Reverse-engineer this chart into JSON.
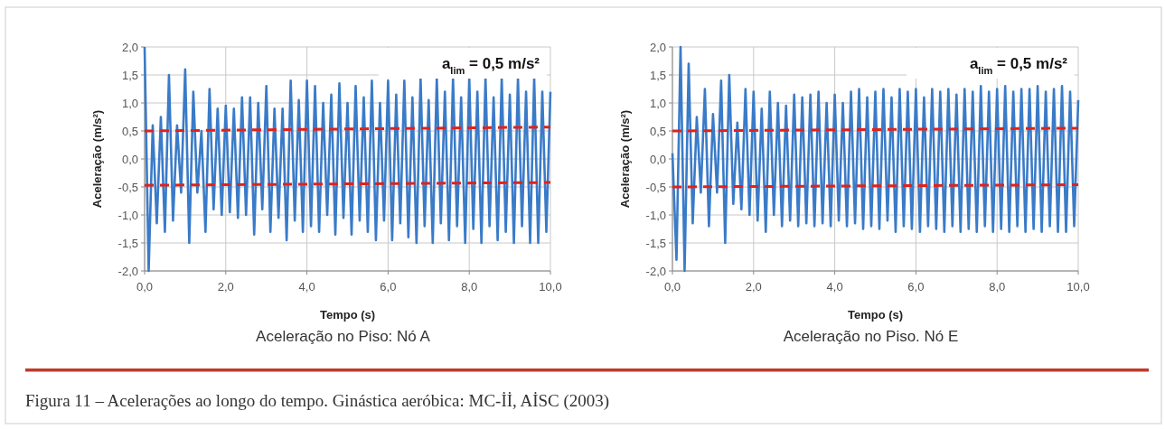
{
  "chart_data": [
    {
      "type": "line",
      "title": "Aceleração no Piso: Nó A",
      "xlabel": "Tempo (s)",
      "ylabel": "Aceleração (m/s²)",
      "annotations": [
        "a$_{lim}$ = 0,5 m/s²"
      ],
      "xlim": [
        0,
        10
      ],
      "ylim": [
        -2,
        2
      ],
      "xticks": [
        {
          "value": 0,
          "label": "0,0"
        },
        {
          "value": 2,
          "label": "2,0"
        },
        {
          "value": 4,
          "label": "4,0"
        },
        {
          "value": 6,
          "label": "6,0"
        },
        {
          "value": 8,
          "label": "8,0"
        },
        {
          "value": 10,
          "label": "10,0"
        }
      ],
      "yticks": [
        {
          "value": -2,
          "label": "-2,0"
        },
        {
          "value": -1.5,
          "label": "-1,5"
        },
        {
          "value": -1,
          "label": "-1,0"
        },
        {
          "value": -0.5,
          "label": "-0,5"
        },
        {
          "value": 0,
          "label": "0,0"
        },
        {
          "value": 0.5,
          "label": "0,5"
        },
        {
          "value": 1,
          "label": "1,0"
        },
        {
          "value": 1.5,
          "label": "1,5"
        },
        {
          "value": 2,
          "label": "2,0"
        }
      ],
      "grid": true,
      "series": [
        {
          "color": "#3a7bc8",
          "line_style": "solid",
          "x": [
            0,
            0.1,
            0.2,
            0.3,
            0.4,
            0.5,
            0.6,
            0.7,
            0.8,
            0.9,
            1,
            1.1,
            1.2,
            1.3,
            1.4,
            1.5,
            1.6,
            1.7,
            1.8,
            1.9,
            2,
            2.1,
            2.2,
            2.3,
            2.4,
            2.5,
            2.6,
            2.7,
            2.8,
            2.9,
            3,
            3.1,
            3.2,
            3.3,
            3.4,
            3.5,
            3.6,
            3.7,
            3.8,
            3.9,
            4,
            4.1,
            4.2,
            4.3,
            4.4,
            4.5,
            4.6,
            4.7,
            4.8,
            4.9,
            5,
            5.1,
            5.2,
            5.3,
            5.4,
            5.5,
            5.6,
            5.7,
            5.8,
            5.9,
            6,
            6.1,
            6.2,
            6.3,
            6.4,
            6.5,
            6.6,
            6.7,
            6.8,
            6.9,
            7,
            7.1,
            7.2,
            7.3,
            7.4,
            7.5,
            7.6,
            7.7,
            7.8,
            7.9,
            8,
            8.1,
            8.2,
            8.3,
            8.4,
            8.5,
            8.6,
            8.7,
            8.8,
            8.9,
            9,
            9.1,
            9.2,
            9.3,
            9.4,
            9.5,
            9.6,
            9.7,
            9.8,
            9.9,
            10
          ],
          "values": [
            2.0,
            -2.0,
            0.6,
            -1.15,
            0.75,
            -1.3,
            1.5,
            -1.1,
            0.6,
            -0.6,
            1.6,
            -1.5,
            1.2,
            -0.6,
            0.5,
            -1.3,
            1.25,
            -0.9,
            0.9,
            -1.0,
            0.95,
            -0.95,
            0.9,
            -1.05,
            1.1,
            -1.0,
            1.1,
            -1.35,
            1.0,
            -0.9,
            1.3,
            -1.3,
            0.9,
            -1.05,
            0.9,
            -1.45,
            1.4,
            -1.1,
            1.05,
            -1.3,
            1.4,
            -1.2,
            1.3,
            -1.3,
            1.0,
            -1.0,
            1.15,
            -1.35,
            1.35,
            -1.05,
            1.0,
            -1.35,
            1.3,
            -1.1,
            1.1,
            -1.3,
            1.4,
            -1.45,
            1.0,
            -1.1,
            1.4,
            -1.45,
            1.15,
            -1.15,
            1.4,
            -1.4,
            1.1,
            -1.5,
            1.45,
            -1.2,
            1.05,
            -1.5,
            1.45,
            -1.15,
            1.2,
            -1.45,
            1.45,
            -1.2,
            1.1,
            -1.5,
            1.45,
            -1.25,
            1.2,
            -1.5,
            1.45,
            -1.2,
            1.1,
            -1.45,
            1.45,
            -1.3,
            1.15,
            -1.5,
            1.45,
            -1.2,
            1.2,
            -1.5,
            1.45,
            -1.5,
            1.2,
            -1.3,
            1.2
          ]
        },
        {
          "color": "#e0221b",
          "line_style": "dashed",
          "x": [
            0,
            10
          ],
          "values": [
            0.5,
            0.57
          ]
        },
        {
          "color": "#e0221b",
          "line_style": "dashed",
          "x": [
            0,
            10
          ],
          "values": [
            -0.47,
            -0.42
          ]
        }
      ]
    },
    {
      "type": "line",
      "title": "Aceleração no Piso. Nó E",
      "xlabel": "Tempo (s)",
      "ylabel": "Aceleração (m/s²)",
      "annotations": [
        "a$_{lim}$ = 0,5 m/s²",
        "Figura 11 – Acelerações ao longo do tempo. Ginástica aeróbica: MC-İİ, AİSC (2003)"
      ],
      "xlim": [
        0,
        10
      ],
      "ylim": [
        -2,
        2
      ],
      "xticks": [
        {
          "value": 0,
          "label": "0,0"
        },
        {
          "value": 2,
          "label": "2,0"
        },
        {
          "value": 4,
          "label": "4,0"
        },
        {
          "value": 6,
          "label": "6,0"
        },
        {
          "value": 8,
          "label": "8,0"
        },
        {
          "value": 10,
          "label": "10,0"
        }
      ],
      "yticks": [
        {
          "value": -2,
          "label": "-2,0"
        },
        {
          "value": -1.5,
          "label": "-1,5"
        },
        {
          "value": -1,
          "label": "-1,0"
        },
        {
          "value": -0.5,
          "label": "-0,5"
        },
        {
          "value": 0,
          "label": "0,0"
        },
        {
          "value": 0.5,
          "label": "0,5"
        },
        {
          "value": 1,
          "label": "1,0"
        },
        {
          "value": 1.5,
          "label": "1,5"
        },
        {
          "value": 2,
          "label": "2,0"
        }
      ],
      "grid": true,
      "series": [
        {
          "color": "#3a7bc8",
          "line_style": "solid",
          "x": [
            0,
            0.1,
            0.2,
            0.3,
            0.4,
            0.5,
            0.6,
            0.7,
            0.8,
            0.9,
            1,
            1.1,
            1.2,
            1.3,
            1.4,
            1.5,
            1.6,
            1.7,
            1.8,
            1.9,
            2,
            2.1,
            2.2,
            2.3,
            2.4,
            2.5,
            2.6,
            2.7,
            2.8,
            2.9,
            3,
            3.1,
            3.2,
            3.3,
            3.4,
            3.5,
            3.6,
            3.7,
            3.8,
            3.9,
            4,
            4.1,
            4.2,
            4.3,
            4.4,
            4.5,
            4.6,
            4.7,
            4.8,
            4.9,
            5,
            5.1,
            5.2,
            5.3,
            5.4,
            5.5,
            5.6,
            5.7,
            5.8,
            5.9,
            6,
            6.1,
            6.2,
            6.3,
            6.4,
            6.5,
            6.6,
            6.7,
            6.8,
            6.9,
            7,
            7.1,
            7.2,
            7.3,
            7.4,
            7.5,
            7.6,
            7.7,
            7.8,
            7.9,
            8,
            8.1,
            8.2,
            8.3,
            8.4,
            8.5,
            8.6,
            8.7,
            8.8,
            8.9,
            9,
            9.1,
            9.2,
            9.3,
            9.4,
            9.5,
            9.6,
            9.7,
            9.8,
            9.9,
            10
          ],
          "values": [
            0.1,
            -1.8,
            2.0,
            -2.0,
            1.7,
            -1.15,
            0.75,
            -0.6,
            1.25,
            -1.2,
            0.8,
            -0.6,
            1.4,
            -1.5,
            1.5,
            -0.8,
            0.65,
            -0.9,
            1.25,
            -1.0,
            1.2,
            -1.1,
            0.9,
            -1.3,
            1.2,
            -1.0,
            1.0,
            -1.2,
            0.95,
            -1.1,
            1.15,
            -1.2,
            1.1,
            -1.15,
            1.15,
            -1.2,
            1.2,
            -1.15,
            1.0,
            -1.2,
            1.15,
            -1.1,
            1.0,
            -1.2,
            1.2,
            -1.15,
            1.25,
            -1.25,
            1.1,
            -1.2,
            1.2,
            -1.25,
            1.25,
            -1.1,
            1.1,
            -1.3,
            1.25,
            -1.2,
            1.2,
            -1.25,
            1.25,
            -1.3,
            1.1,
            -1.2,
            1.25,
            -1.25,
            1.2,
            -1.3,
            1.25,
            -1.2,
            1.15,
            -1.3,
            1.25,
            -1.25,
            1.2,
            -1.3,
            1.3,
            -1.2,
            1.2,
            -1.3,
            1.25,
            -1.25,
            1.3,
            -1.3,
            1.2,
            -1.2,
            1.25,
            -1.3,
            1.25,
            -1.25,
            1.3,
            -1.3,
            1.2,
            -1.2,
            1.25,
            -1.3,
            1.3,
            -1.3,
            1.2,
            -1.2,
            1.05
          ]
        },
        {
          "color": "#e0221b",
          "line_style": "dashed",
          "x": [
            0,
            10
          ],
          "values": [
            0.5,
            0.55
          ]
        },
        {
          "color": "#e0221b",
          "line_style": "dashed",
          "x": [
            0,
            10
          ],
          "values": [
            -0.5,
            -0.46
          ]
        }
      ]
    }
  ]
}
